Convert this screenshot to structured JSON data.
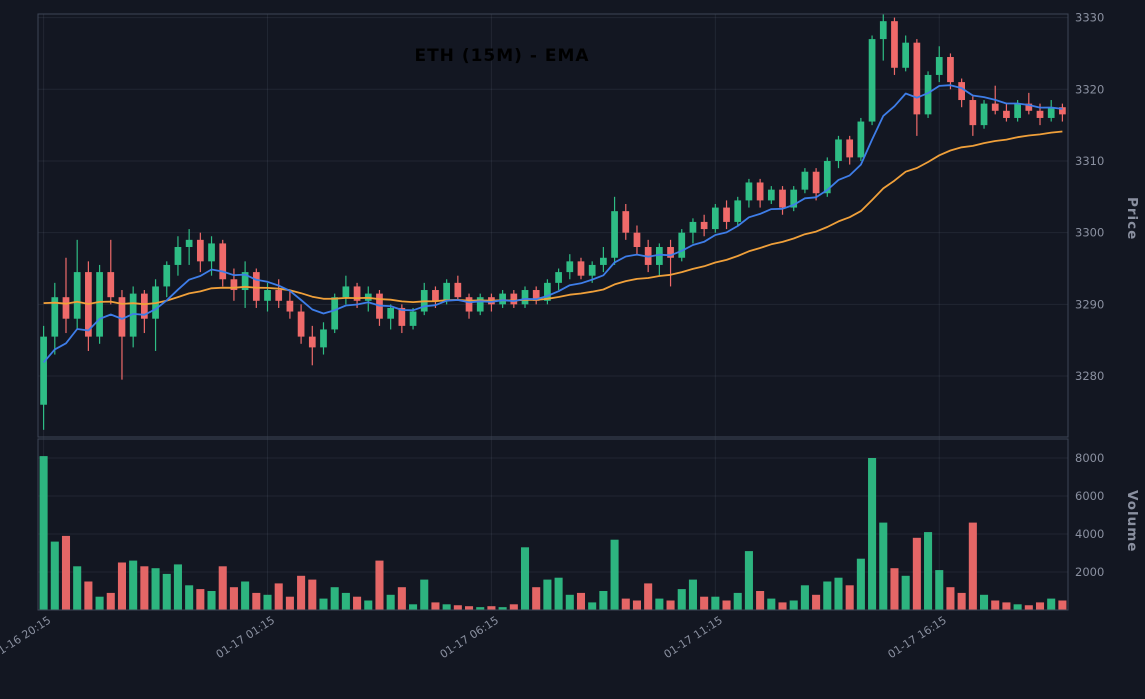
{
  "title": "ETH (15M) - EMA",
  "colors": {
    "background": "#131722",
    "border": "#3e4656",
    "grid": "rgba(140,152,175,0.12)",
    "up": "#2ebd85",
    "down": "#ef6a6a",
    "ema_fast": "#3e7de8",
    "ema_slow": "#f0a03a",
    "axis_text": "#8a90a0",
    "title_text": "#000000"
  },
  "axes": {
    "price_label": "Price",
    "volume_label": "Volume",
    "price_ticks": [
      3280,
      3290,
      3300,
      3310,
      3320,
      3330
    ],
    "volume_ticks": [
      2000,
      4000,
      6000,
      8000
    ],
    "x_tick_labels": [
      "01-16 20:15",
      "01-17 01:15",
      "01-17 06:15",
      "01-17 11:15",
      "01-17 16:15"
    ],
    "x_tick_indices": [
      0,
      20,
      40,
      60,
      80
    ],
    "price_range": [
      3271.5,
      3330.5
    ],
    "volume_range": [
      0,
      9000
    ]
  },
  "chart_data": {
    "type": "candlestick+volume",
    "title": "ETH (15M) - EMA",
    "symbol": "ETH",
    "interval": "15M",
    "overlay": "EMA",
    "ylabel": "Price",
    "ylabel_lower": "Volume",
    "ema_fast": {
      "period": 9,
      "seed": 3281
    },
    "ema_slow": {
      "period": 30,
      "seed": 3290.5
    },
    "candle_fields": [
      "open",
      "high",
      "low",
      "close",
      "volume"
    ],
    "candles": [
      [
        3276,
        3287,
        3272.5,
        3285.5,
        8100
      ],
      [
        3285.5,
        3293,
        3283,
        3291,
        3600
      ],
      [
        3291,
        3296.5,
        3286,
        3288,
        3900
      ],
      [
        3288,
        3299,
        3286.5,
        3294.5,
        2300
      ],
      [
        3294.5,
        3296,
        3283.5,
        3285.5,
        1500
      ],
      [
        3285.5,
        3295.5,
        3284.5,
        3294.5,
        700
      ],
      [
        3294.5,
        3299,
        3290,
        3291,
        900
      ],
      [
        3291,
        3292,
        3279.5,
        3285.5,
        2500
      ],
      [
        3285.5,
        3292.5,
        3284,
        3291.5,
        2600
      ],
      [
        3291.5,
        3292,
        3286,
        3288,
        2300
      ],
      [
        3288,
        3293.5,
        3283.5,
        3292.5,
        2200
      ],
      [
        3292.5,
        3296,
        3291,
        3295.5,
        1900
      ],
      [
        3295.5,
        3299.5,
        3294,
        3298,
        2400
      ],
      [
        3298,
        3300.5,
        3295.5,
        3299,
        1300
      ],
      [
        3299,
        3300,
        3294.5,
        3296,
        1100
      ],
      [
        3296,
        3299.5,
        3294,
        3298.5,
        1000
      ],
      [
        3298.5,
        3299,
        3292.5,
        3293.5,
        2300
      ],
      [
        3293.5,
        3295,
        3290.5,
        3292,
        1200
      ],
      [
        3292,
        3296,
        3289.5,
        3294.5,
        1500
      ],
      [
        3294.5,
        3295,
        3289.5,
        3290.5,
        900
      ],
      [
        3290.5,
        3293,
        3289,
        3292,
        800
      ],
      [
        3292,
        3293.5,
        3289.5,
        3290.5,
        1400
      ],
      [
        3290.5,
        3292,
        3288,
        3289,
        700
      ],
      [
        3289,
        3290,
        3284.5,
        3285.5,
        1800
      ],
      [
        3285.5,
        3287,
        3281.5,
        3284,
        1600
      ],
      [
        3284,
        3287.5,
        3283,
        3286.5,
        600
      ],
      [
        3286.5,
        3291.5,
        3286,
        3291,
        1200
      ],
      [
        3291,
        3294,
        3290,
        3292.5,
        900
      ],
      [
        3292.5,
        3293,
        3289.5,
        3290.5,
        700
      ],
      [
        3290.5,
        3292.5,
        3289,
        3291.5,
        500
      ],
      [
        3291.5,
        3292,
        3287,
        3288,
        2600
      ],
      [
        3288,
        3290,
        3286.5,
        3289.5,
        800
      ],
      [
        3289.5,
        3290,
        3286,
        3287,
        1200
      ],
      [
        3287,
        3289.5,
        3286.5,
        3289,
        300
      ],
      [
        3289,
        3293,
        3288.5,
        3292,
        1600
      ],
      [
        3292,
        3292.5,
        3289.5,
        3290.5,
        400
      ],
      [
        3290.5,
        3293.5,
        3290,
        3293,
        300
      ],
      [
        3293,
        3294,
        3290.5,
        3291,
        250
      ],
      [
        3291,
        3291.5,
        3288,
        3289,
        200
      ],
      [
        3289,
        3291.5,
        3288.5,
        3291,
        150
      ],
      [
        3291,
        3291.5,
        3289,
        3290,
        200
      ],
      [
        3290,
        3292,
        3289.5,
        3291.5,
        150
      ],
      [
        3291.5,
        3292,
        3289.5,
        3290,
        300
      ],
      [
        3290,
        3292.5,
        3289.5,
        3292,
        3300
      ],
      [
        3292,
        3292.5,
        3290,
        3290.5,
        1200
      ],
      [
        3290.5,
        3293.5,
        3290,
        3293,
        1600
      ],
      [
        3293,
        3295,
        3292,
        3294.5,
        1700
      ],
      [
        3294.5,
        3297,
        3293.5,
        3296,
        800
      ],
      [
        3296,
        3296.5,
        3293.5,
        3294,
        900
      ],
      [
        3294,
        3296,
        3293,
        3295.5,
        400
      ],
      [
        3295.5,
        3298,
        3294.5,
        3296.5,
        1000
      ],
      [
        3296.5,
        3305,
        3295.5,
        3303,
        3700
      ],
      [
        3303,
        3304,
        3299,
        3300,
        600
      ],
      [
        3300,
        3301,
        3297,
        3298,
        500
      ],
      [
        3298,
        3299,
        3294.5,
        3295.5,
        1400
      ],
      [
        3295.5,
        3298.5,
        3294,
        3298,
        600
      ],
      [
        3298,
        3299,
        3292.5,
        3296.5,
        500
      ],
      [
        3296.5,
        3300.5,
        3296,
        3300,
        1100
      ],
      [
        3300,
        3302,
        3298.5,
        3301.5,
        1600
      ],
      [
        3301.5,
        3302.5,
        3299.5,
        3300.5,
        700
      ],
      [
        3300.5,
        3304,
        3300,
        3303.5,
        700
      ],
      [
        3303.5,
        3304.5,
        3300.5,
        3301.5,
        500
      ],
      [
        3301.5,
        3305,
        3301,
        3304.5,
        900
      ],
      [
        3304.5,
        3307.5,
        3303.5,
        3307,
        3100
      ],
      [
        3307,
        3307.5,
        3303.5,
        3304.5,
        1000
      ],
      [
        3304.5,
        3306.5,
        3304,
        3306,
        600
      ],
      [
        3306,
        3306.5,
        3302.5,
        3303.5,
        400
      ],
      [
        3303.5,
        3306.5,
        3303,
        3306,
        500
      ],
      [
        3306,
        3309,
        3305.5,
        3308.5,
        1300
      ],
      [
        3308.5,
        3309,
        3304.5,
        3305.5,
        800
      ],
      [
        3305.5,
        3310.5,
        3305,
        3310,
        1500
      ],
      [
        3310,
        3313.5,
        3309,
        3313,
        1700
      ],
      [
        3313,
        3313.5,
        3309.5,
        3310.5,
        1300
      ],
      [
        3310.5,
        3316,
        3310,
        3315.5,
        2700
      ],
      [
        3315.5,
        3327.5,
        3315,
        3327,
        8000
      ],
      [
        3327,
        3330.5,
        3324,
        3329.5,
        4600
      ],
      [
        3329.5,
        3330,
        3322,
        3323,
        2200
      ],
      [
        3323,
        3327.5,
        3322.5,
        3326.5,
        1800
      ],
      [
        3326.5,
        3327,
        3313.5,
        3316.5,
        3800
      ],
      [
        3316.5,
        3322.5,
        3316,
        3322,
        4100
      ],
      [
        3322,
        3326,
        3321,
        3324.5,
        2100
      ],
      [
        3324.5,
        3325,
        3320,
        3321,
        1200
      ],
      [
        3321,
        3321.5,
        3317.5,
        3318.5,
        900
      ],
      [
        3318.5,
        3319,
        3313.5,
        3315,
        4600
      ],
      [
        3315,
        3318.5,
        3314.5,
        3318,
        800
      ],
      [
        3318,
        3320.5,
        3316.5,
        3317,
        500
      ],
      [
        3317,
        3318,
        3315.5,
        3316,
        400
      ],
      [
        3316,
        3318.5,
        3315.5,
        3318,
        300
      ],
      [
        3318,
        3319.5,
        3316.5,
        3317,
        250
      ],
      [
        3317,
        3318,
        3315,
        3316,
        400
      ],
      [
        3316,
        3318.5,
        3315.5,
        3317.5,
        600
      ],
      [
        3317.5,
        3318,
        3315.5,
        3316.5,
        500
      ]
    ]
  }
}
